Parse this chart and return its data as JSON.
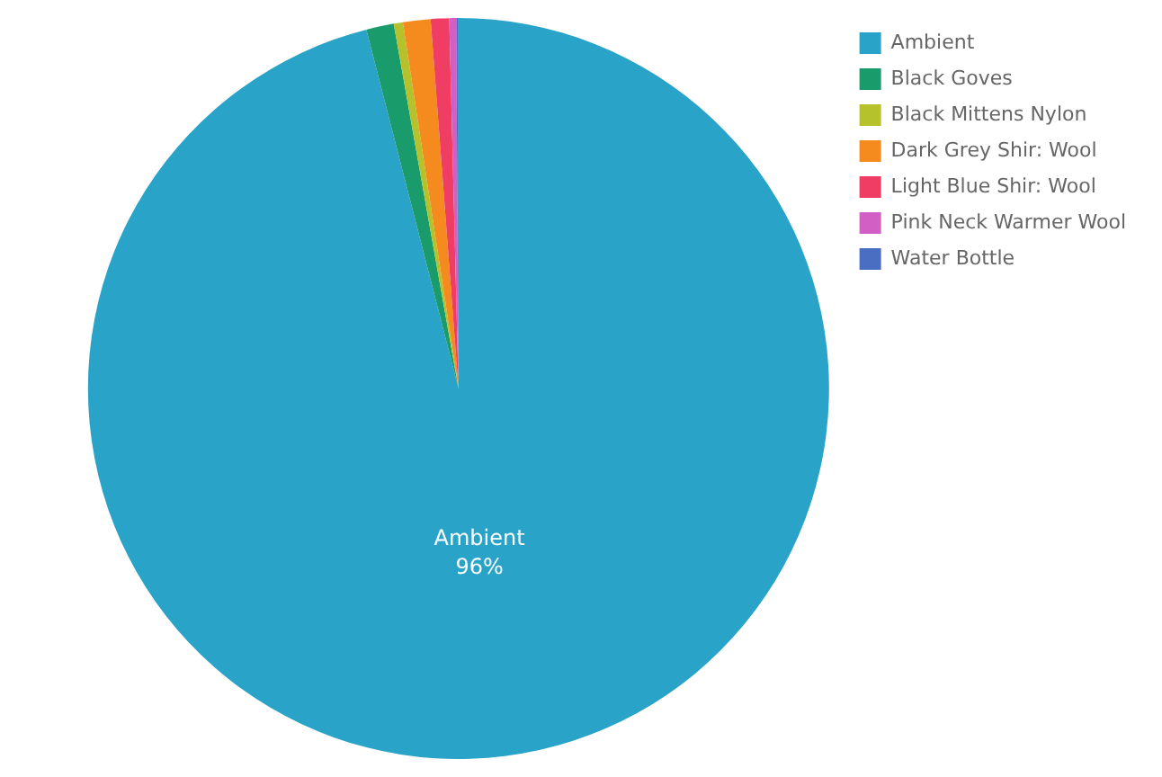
{
  "chart_data": {
    "type": "pie",
    "categories": [
      "Ambient",
      "Black Goves",
      "Black Mittens Nylon",
      "Dark Grey Shir: Wool",
      "Light Blue Shir: Wool",
      "Pink Neck Warmer Wool",
      "Water Bottle"
    ],
    "values": [
      96,
      1.2,
      0.4,
      1.2,
      0.8,
      0.3,
      0.1
    ],
    "colors": [
      "#2aa3c8",
      "#1a9b6c",
      "#b5c22c",
      "#f58a1f",
      "#ef3d63",
      "#d25fc4",
      "#4a6fc2"
    ],
    "value_labels": [
      "96%",
      null,
      null,
      null,
      null,
      null,
      null
    ],
    "legend": "right"
  }
}
